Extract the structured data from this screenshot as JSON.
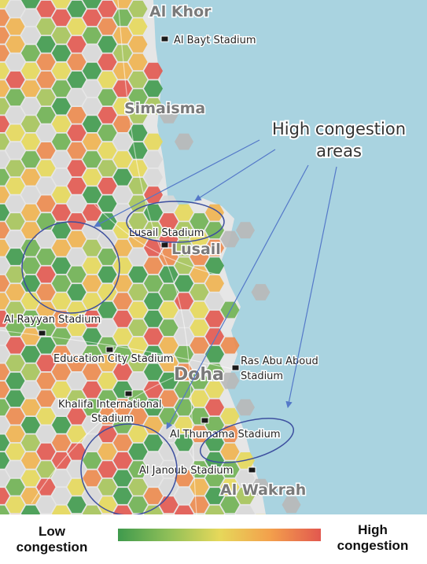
{
  "places": {
    "al_khor": "Al Khor",
    "simaisma": "Simaisma",
    "lusail": "Lusail",
    "doha": "Doha",
    "al_wakrah": "Al Wakrah"
  },
  "stadiums": {
    "al_bayt": "Al Bayt Stadium",
    "lusail": "Lusail Stadium",
    "al_rayyan": "Al Rayyan Stadium",
    "education_city": "Education City Stadium",
    "khalifa_line1": "Khalifa International",
    "khalifa_line2": "Stadium",
    "ras_abu_aboud_line1": "Ras Abu Aboud",
    "ras_abu_aboud_line2": "Stadium",
    "al_thumama": "Al Thumama Stadium",
    "al_janoub": "Al Janoub Stadium"
  },
  "annotation": {
    "line1": "High congestion",
    "line2": "areas"
  },
  "legend": {
    "low": "Low congestion",
    "high": "High congestion"
  },
  "colors": {
    "sea": "#a9d3e0",
    "land": "#e6e6e6",
    "low": "#3f9a4d",
    "mid": "#e6d85a",
    "high": "#e2584f",
    "circle": "#3d4f9f",
    "arrow": "#5478c8"
  }
}
